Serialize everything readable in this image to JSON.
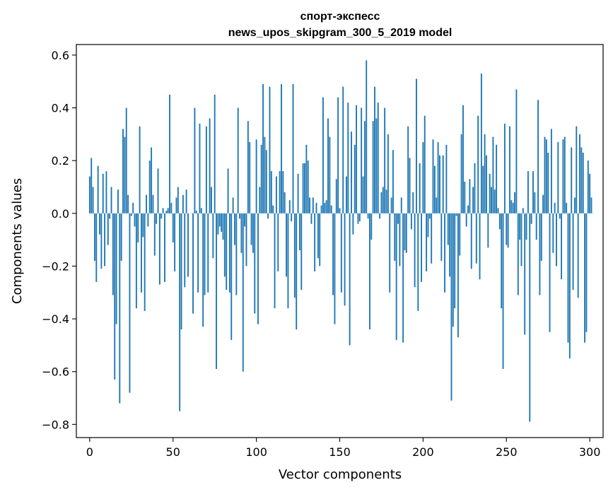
{
  "chart_data": {
    "type": "bar",
    "title": "спорт-экспесс",
    "subtitle": "news_upos_skipgram_300_5_2019 model",
    "xlabel": "Vector components",
    "ylabel": "Components values",
    "xlim": [
      -8,
      308
    ],
    "ylim": [
      -0.85,
      0.64
    ],
    "xticks": [
      0,
      50,
      100,
      150,
      200,
      250,
      300
    ],
    "yticks": [
      -0.8,
      -0.6,
      -0.4,
      -0.2,
      0.0,
      0.2,
      0.4,
      0.6
    ],
    "ytick_labels": [
      "−0.8",
      "−0.6",
      "−0.4",
      "−0.2",
      "0.0",
      "0.2",
      "0.4",
      "0.6"
    ],
    "xtick_labels": [
      "0",
      "50",
      "100",
      "150",
      "200",
      "250",
      "300"
    ],
    "bar_color": "#1f77b4",
    "grid": false,
    "values": [
      0.14,
      0.21,
      0.1,
      -0.18,
      -0.26,
      0.18,
      -0.08,
      -0.21,
      0.15,
      -0.2,
      0.16,
      -0.12,
      -0.02,
      0.1,
      -0.31,
      -0.63,
      -0.42,
      0.09,
      -0.72,
      -0.18,
      0.32,
      0.29,
      0.4,
      0.07,
      -0.68,
      -0.01,
      0.04,
      -0.05,
      -0.36,
      -0.11,
      0.33,
      -0.3,
      -0.09,
      -0.37,
      0.07,
      -0.05,
      0.2,
      0.25,
      0.07,
      -0.16,
      -0.04,
      0.17,
      -0.27,
      -0.02,
      0.02,
      -0.26,
      0.01,
      0.02,
      0.45,
      0.04,
      -0.11,
      -0.22,
      0.06,
      0.1,
      -0.75,
      -0.44,
      0.07,
      -0.28,
      0.09,
      -0.24,
      0.0,
      0.0,
      -0.38,
      0.4,
      0.01,
      -0.3,
      0.34,
      0.02,
      -0.43,
      -0.31,
      0.33,
      -0.3,
      0.36,
      0.1,
      -0.17,
      0.45,
      -0.59,
      -0.08,
      -0.05,
      -0.07,
      -0.1,
      -0.24,
      -0.29,
      0.17,
      -0.3,
      -0.48,
      0.06,
      -0.12,
      -0.31,
      0.4,
      -0.02,
      -0.15,
      -0.6,
      -0.05,
      -0.2,
      0.35,
      0.27,
      -0.12,
      -0.15,
      -0.38,
      0.28,
      -0.42,
      0.1,
      0.26,
      0.49,
      0.29,
      0.24,
      -0.02,
      0.48,
      0.16,
      0.03,
      -0.36,
      0.14,
      -0.22,
      0.16,
      0.49,
      0.16,
      0.08,
      -0.24,
      -0.36,
      0.05,
      -0.03,
      0.49,
      -0.32,
      -0.44,
      0.15,
      -0.14,
      -0.29,
      0.19,
      0.19,
      0.26,
      0.2,
      0.06,
      -0.04,
      0.06,
      -0.22,
      0.04,
      -0.17,
      -0.2,
      0.03,
      0.44,
      0.04,
      0.05,
      0.36,
      0.29,
      0.03,
      -0.31,
      -0.42,
      0.13,
      0.44,
      0.02,
      -0.3,
      0.48,
      -0.35,
      0.14,
      0.42,
      -0.5,
      0.31,
      -0.08,
      0.26,
      0.41,
      -0.04,
      -0.03,
      0.4,
      0.14,
      0.35,
      0.58,
      -0.02,
      -0.44,
      -0.1,
      0.35,
      0.48,
      0.36,
      0.42,
      -0.02,
      0.08,
      0.1,
      0.4,
      0.09,
      0.3,
      -0.3,
      0.06,
      0.24,
      -0.18,
      -0.48,
      -0.04,
      -0.2,
      0.06,
      -0.49,
      -0.14,
      -0.15,
      0.33,
      0.21,
      -0.06,
      0.08,
      -0.28,
      0.51,
      -0.37,
      0.19,
      -0.26,
      0.27,
      0.37,
      -0.22,
      -0.09,
      -0.02,
      -0.19,
      0.28,
      0.18,
      0.06,
      0.27,
      0.22,
      -0.18,
      0.22,
      -0.3,
      0.26,
      -0.12,
      -0.24,
      -0.71,
      -0.43,
      -0.36,
      -0.01,
      -0.47,
      -0.16,
      0.3,
      0.41,
      0.12,
      -0.05,
      0.03,
      0.13,
      -0.21,
      0.1,
      0.19,
      -0.19,
      0.37,
      -0.25,
      0.53,
      0.18,
      0.3,
      0.22,
      -0.13,
      0.15,
      0.1,
      0.29,
      0.09,
      0.26,
      0.02,
      -0.06,
      -0.36,
      -0.59,
      0.34,
      -0.12,
      -0.13,
      0.33,
      0.05,
      0.04,
      0.08,
      0.47,
      -0.31,
      -0.1,
      -0.2,
      0.02,
      -0.46,
      -0.1,
      0.16,
      -0.79,
      -0.04,
      0.16,
      0.08,
      -0.1,
      0.43,
      -0.31,
      -0.18,
      0.07,
      0.29,
      0.28,
      0.23,
      -0.45,
      0.32,
      -0.15,
      0.04,
      -0.2,
      0.27,
      -0.02,
      -0.25,
      0.28,
      0.29,
      0.04,
      -0.49,
      -0.55,
      0.25,
      -0.29,
      0.06,
      0.33,
      -0.32,
      0.3,
      0.25,
      0.23,
      -0.49,
      -0.45,
      0.2,
      0.15,
      0.06,
      0.0
    ]
  }
}
